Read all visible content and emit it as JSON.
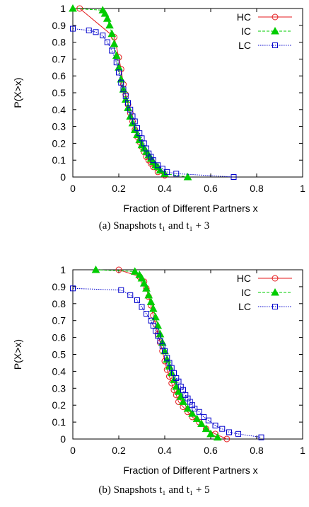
{
  "chart_data": [
    {
      "type": "line",
      "xlabel": "Fraction of Different Partners x",
      "ylabel": "P(X>x)",
      "xlim": [
        0,
        1
      ],
      "ylim": [
        0,
        1
      ],
      "xticks": [
        "0",
        "0.2",
        "0.4",
        "0.6",
        "0.8",
        "1"
      ],
      "yticks": [
        "0",
        "0.1",
        "0.2",
        "0.3",
        "0.4",
        "0.5",
        "0.6",
        "0.7",
        "0.8",
        "0.9",
        "1"
      ],
      "caption": "(a)  Snapshots t₁ and t₁ + 3",
      "legend_position": "top-right",
      "series": [
        {
          "name": "HC",
          "color": "#e41a1c",
          "marker": "circle",
          "dash": "solid",
          "x": [
            0.03,
            0.18,
            0.2,
            0.21,
            0.22,
            0.23,
            0.24,
            0.25,
            0.26,
            0.27,
            0.28,
            0.29,
            0.3,
            0.31,
            0.32,
            0.33,
            0.34,
            0.35,
            0.37,
            0.4
          ],
          "y": [
            1.0,
            0.83,
            0.71,
            0.64,
            0.55,
            0.49,
            0.43,
            0.38,
            0.33,
            0.28,
            0.24,
            0.21,
            0.18,
            0.15,
            0.12,
            0.1,
            0.08,
            0.06,
            0.03,
            0.01
          ]
        },
        {
          "name": "IC",
          "color": "#00cc00",
          "marker": "triangle",
          "dash": "dashed",
          "x": [
            0.0,
            0.13,
            0.14,
            0.15,
            0.16,
            0.17,
            0.18,
            0.19,
            0.2,
            0.21,
            0.22,
            0.23,
            0.24,
            0.25,
            0.26,
            0.27,
            0.28,
            0.29,
            0.3,
            0.31,
            0.32,
            0.33,
            0.34,
            0.35,
            0.36,
            0.37,
            0.38,
            0.4,
            0.5
          ],
          "y": [
            1.0,
            0.99,
            0.97,
            0.94,
            0.9,
            0.85,
            0.79,
            0.72,
            0.65,
            0.58,
            0.52,
            0.46,
            0.41,
            0.36,
            0.32,
            0.28,
            0.25,
            0.22,
            0.19,
            0.17,
            0.15,
            0.13,
            0.11,
            0.09,
            0.07,
            0.06,
            0.04,
            0.02,
            0.0
          ]
        },
        {
          "name": "LC",
          "color": "#0000cc",
          "marker": "square",
          "dash": "dotted",
          "x": [
            0.0,
            0.07,
            0.1,
            0.13,
            0.15,
            0.17,
            0.19,
            0.2,
            0.21,
            0.22,
            0.23,
            0.24,
            0.25,
            0.26,
            0.27,
            0.28,
            0.29,
            0.3,
            0.31,
            0.32,
            0.33,
            0.34,
            0.35,
            0.37,
            0.39,
            0.41,
            0.45,
            0.7
          ],
          "y": [
            0.88,
            0.87,
            0.86,
            0.84,
            0.8,
            0.75,
            0.68,
            0.62,
            0.56,
            0.52,
            0.48,
            0.44,
            0.4,
            0.36,
            0.33,
            0.29,
            0.26,
            0.23,
            0.2,
            0.17,
            0.14,
            0.12,
            0.1,
            0.07,
            0.05,
            0.03,
            0.02,
            0.0
          ]
        }
      ]
    },
    {
      "type": "line",
      "xlabel": "Fraction of Different Partners x",
      "ylabel": "P(X>x)",
      "xlim": [
        0,
        1
      ],
      "ylim": [
        0,
        1
      ],
      "xticks": [
        "0",
        "0.2",
        "0.4",
        "0.6",
        "0.8",
        "1"
      ],
      "yticks": [
        "0",
        "0.1",
        "0.2",
        "0.3",
        "0.4",
        "0.5",
        "0.6",
        "0.7",
        "0.8",
        "0.9",
        "1"
      ],
      "caption": "(b)  Snapshots t₁ and t₁ + 5",
      "legend_position": "top-right",
      "series": [
        {
          "name": "HC",
          "color": "#e41a1c",
          "marker": "circle",
          "dash": "solid",
          "x": [
            0.2,
            0.29,
            0.31,
            0.32,
            0.33,
            0.34,
            0.35,
            0.36,
            0.37,
            0.38,
            0.39,
            0.4,
            0.41,
            0.42,
            0.43,
            0.44,
            0.45,
            0.46,
            0.48,
            0.5,
            0.52,
            0.55,
            0.58,
            0.62,
            0.67
          ],
          "y": [
            1.0,
            0.96,
            0.93,
            0.89,
            0.84,
            0.79,
            0.73,
            0.68,
            0.62,
            0.57,
            0.52,
            0.46,
            0.41,
            0.37,
            0.33,
            0.29,
            0.26,
            0.22,
            0.19,
            0.16,
            0.13,
            0.1,
            0.06,
            0.03,
            0.0
          ]
        },
        {
          "name": "IC",
          "color": "#00cc00",
          "marker": "triangle",
          "dash": "dashed",
          "x": [
            0.1,
            0.27,
            0.29,
            0.3,
            0.31,
            0.32,
            0.33,
            0.34,
            0.35,
            0.36,
            0.37,
            0.38,
            0.39,
            0.4,
            0.41,
            0.42,
            0.43,
            0.44,
            0.45,
            0.46,
            0.47,
            0.48,
            0.5,
            0.52,
            0.54,
            0.56,
            0.58,
            0.6,
            0.63
          ],
          "y": [
            1.0,
            0.99,
            0.97,
            0.95,
            0.92,
            0.89,
            0.85,
            0.81,
            0.77,
            0.72,
            0.67,
            0.62,
            0.57,
            0.52,
            0.47,
            0.43,
            0.39,
            0.35,
            0.31,
            0.28,
            0.25,
            0.22,
            0.18,
            0.15,
            0.12,
            0.09,
            0.06,
            0.03,
            0.01
          ]
        },
        {
          "name": "LC",
          "color": "#0000cc",
          "marker": "square",
          "dash": "dotted",
          "x": [
            0.0,
            0.21,
            0.25,
            0.28,
            0.3,
            0.32,
            0.34,
            0.35,
            0.36,
            0.37,
            0.38,
            0.39,
            0.4,
            0.41,
            0.42,
            0.43,
            0.44,
            0.45,
            0.46,
            0.47,
            0.48,
            0.49,
            0.5,
            0.51,
            0.52,
            0.53,
            0.55,
            0.57,
            0.59,
            0.62,
            0.65,
            0.68,
            0.72,
            0.82
          ],
          "y": [
            0.89,
            0.88,
            0.85,
            0.82,
            0.78,
            0.74,
            0.7,
            0.67,
            0.64,
            0.61,
            0.58,
            0.55,
            0.52,
            0.48,
            0.45,
            0.42,
            0.39,
            0.36,
            0.34,
            0.31,
            0.29,
            0.26,
            0.24,
            0.22,
            0.2,
            0.18,
            0.16,
            0.13,
            0.11,
            0.08,
            0.06,
            0.04,
            0.03,
            0.01
          ]
        }
      ]
    }
  ]
}
